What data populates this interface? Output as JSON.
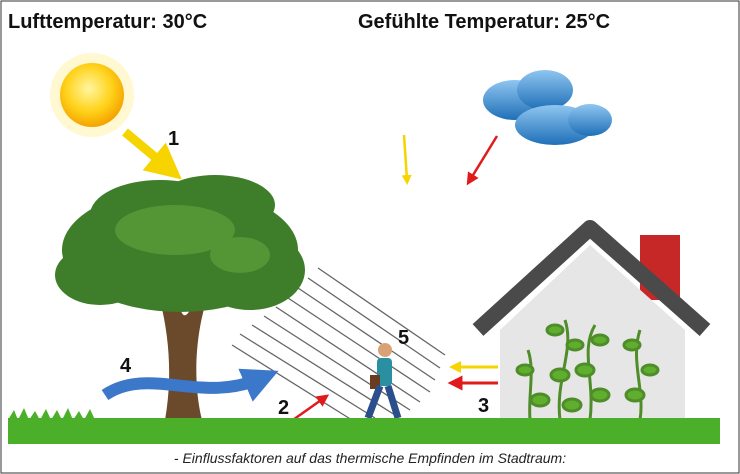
{
  "header": {
    "left": "Lufttemperatur: 30°C",
    "right": "Gefühlte Temperatur: 25°C"
  },
  "labels": [
    "1",
    "2",
    "3",
    "4",
    "5"
  ],
  "caption": "- Einflussfaktoren auf das thermische Empfinden im Stadtraum:"
}
